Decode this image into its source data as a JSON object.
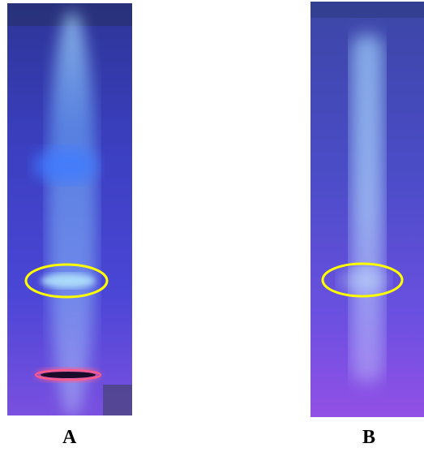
{
  "panels": [
    {
      "label": "A",
      "highlight_color": "#ffff00",
      "origin_spot_color": "#ff5a8a"
    },
    {
      "label": "B",
      "highlight_color": "#ffff00"
    }
  ],
  "colors": {
    "background": "#ffffff",
    "plate_top": "#3a3cb0",
    "plate_bottom": "#6a4ee8",
    "streak": "#bfe8ff"
  }
}
